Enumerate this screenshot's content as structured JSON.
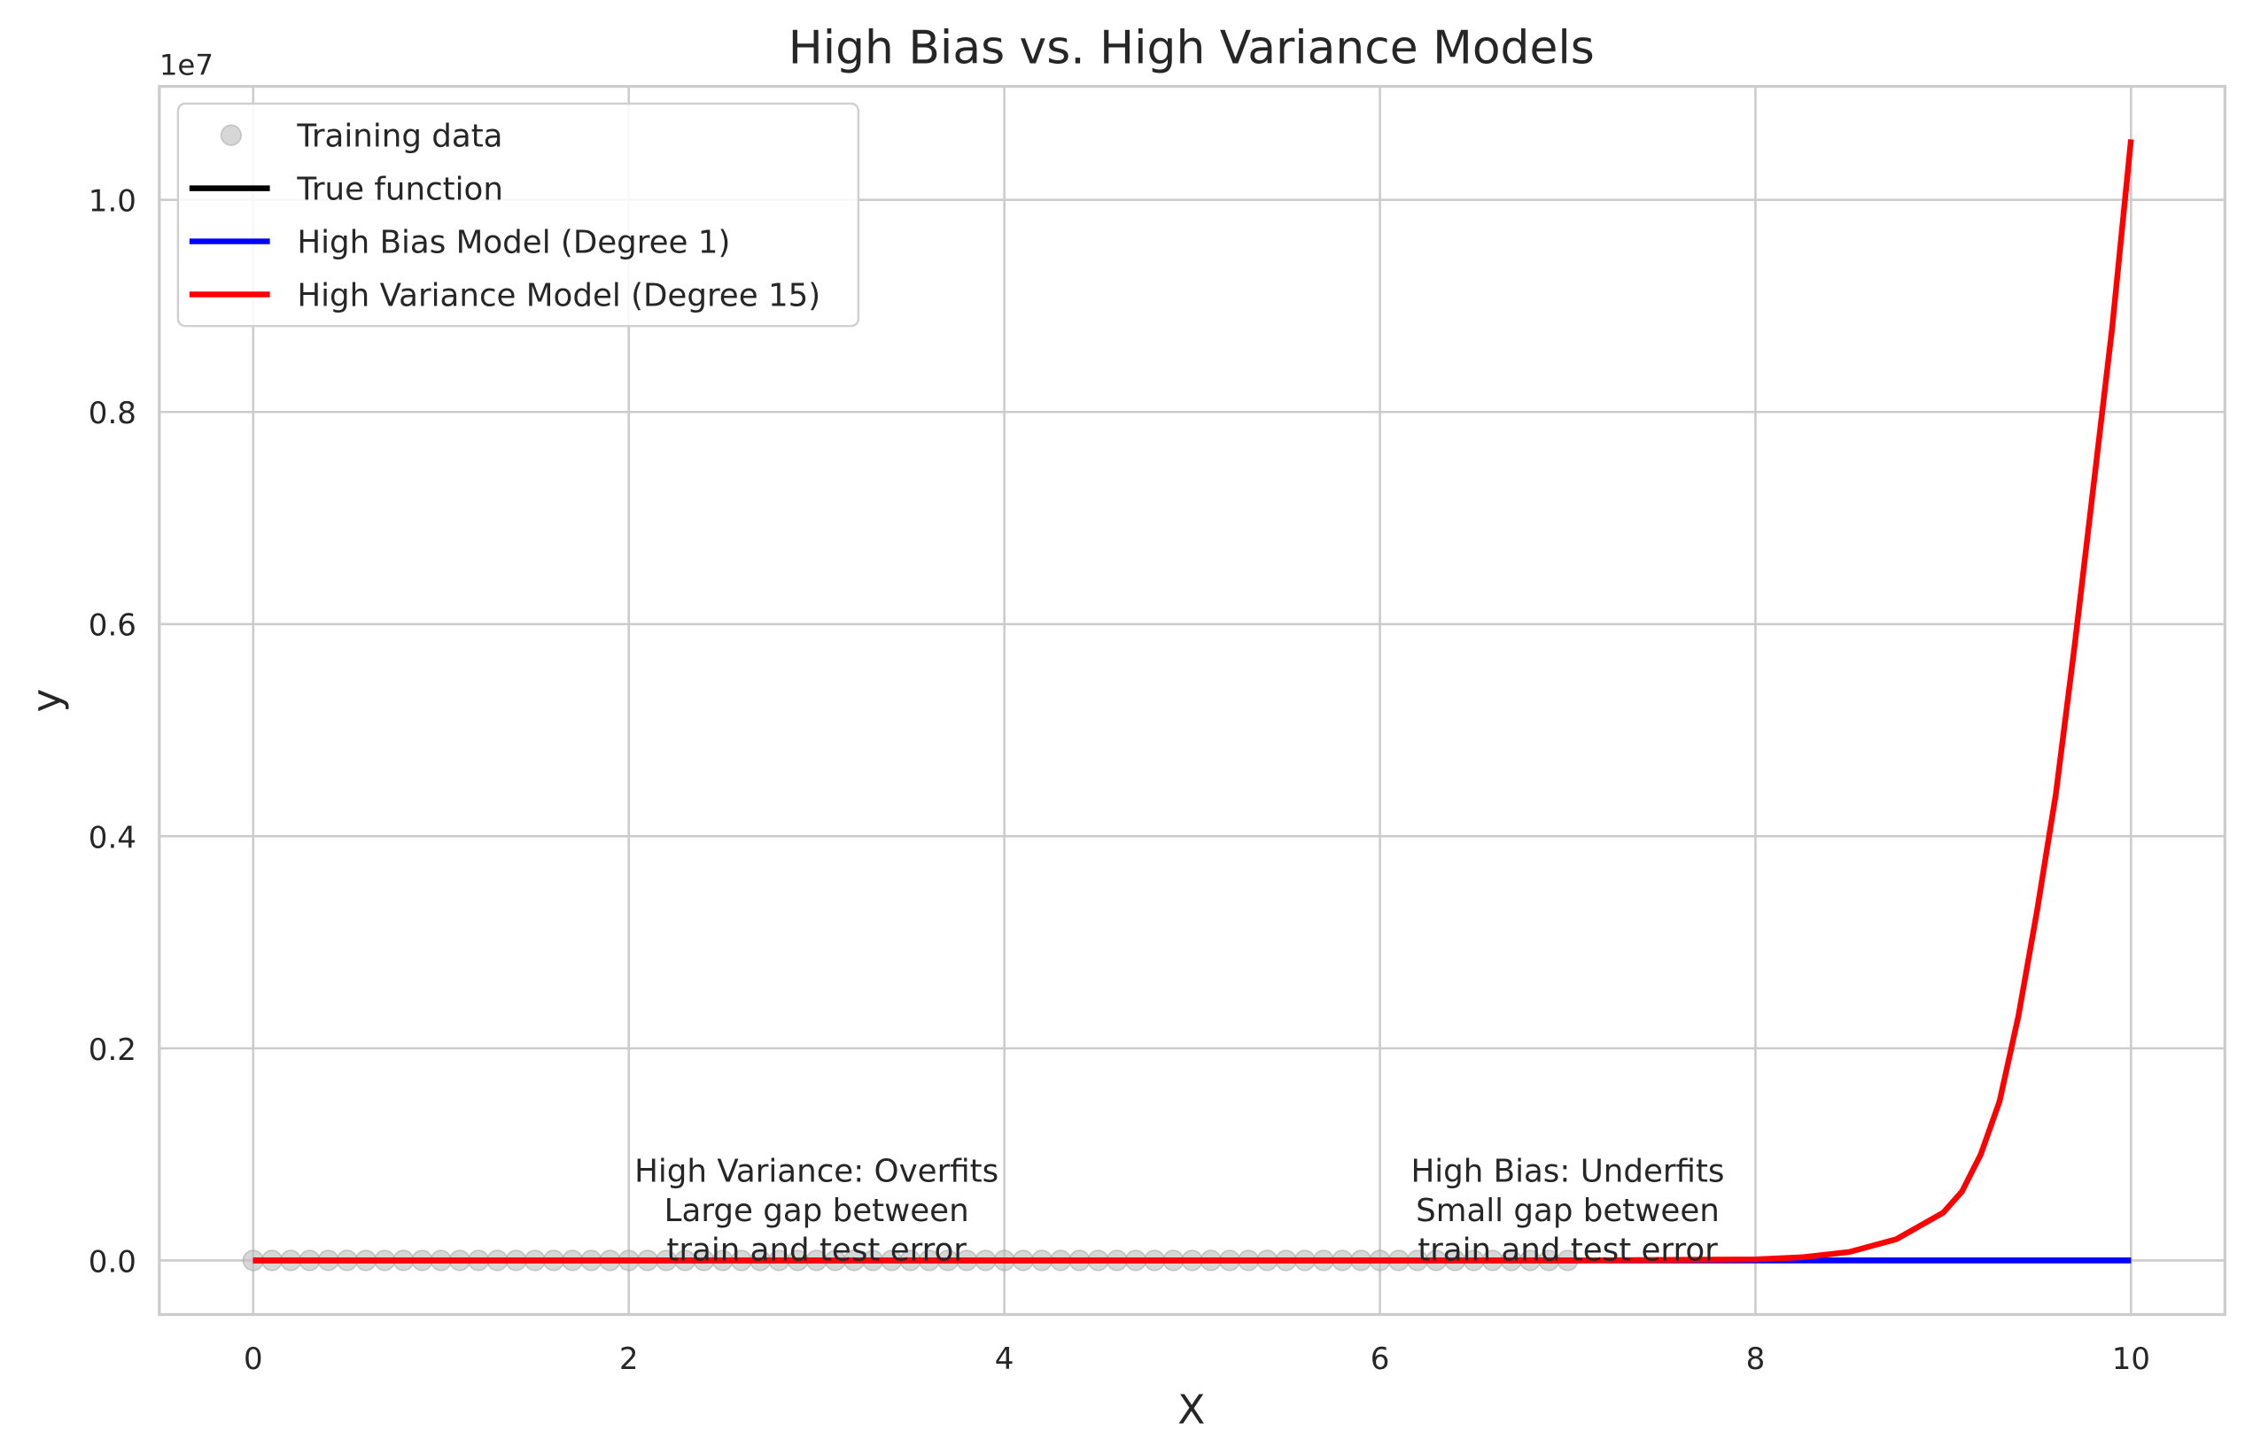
{
  "chart_data": {
    "type": "line",
    "title": "High Bias vs. High Variance Models",
    "x_label": "X",
    "y_label": "y",
    "y_offset_label": "1e7",
    "xlim": [
      -0.5,
      10.5
    ],
    "ylim": [
      -0.051,
      1.107
    ],
    "xticks": [
      0,
      2,
      4,
      6,
      8,
      10
    ],
    "yticks": [
      {
        "value": 0,
        "label": "0.0"
      },
      0.2,
      0.4,
      0.6,
      0.8,
      {
        "value": 1,
        "label": "1.0"
      }
    ],
    "grid": true,
    "legend": "upper left",
    "series": [
      {
        "name": "Training data",
        "type": "scatter",
        "color": "#bdbdbd",
        "x": [
          0,
          0.1,
          0.2,
          0.3,
          0.4,
          0.5,
          0.6,
          0.7,
          0.8,
          0.9,
          1,
          1.1,
          1.2,
          1.3,
          1.4,
          1.5,
          1.6,
          1.7,
          1.8,
          1.9,
          2,
          2.1,
          2.2,
          2.3,
          2.4,
          2.5,
          2.6,
          2.7,
          2.8,
          2.9,
          3,
          3.1,
          3.2,
          3.3,
          3.4,
          3.5,
          3.6,
          3.7,
          3.8,
          3.9,
          4,
          4.1,
          4.2,
          4.3,
          4.4,
          4.5,
          4.6,
          4.7,
          4.8,
          4.9,
          5,
          5.1,
          5.2,
          5.3,
          5.4,
          5.5,
          5.6,
          5.7,
          5.8,
          5.9,
          6,
          6.1,
          6.2,
          6.3,
          6.4,
          6.5,
          6.6,
          6.7,
          6.8,
          6.9,
          7
        ],
        "values": [
          0,
          0,
          0,
          0,
          0,
          0,
          0,
          0,
          0,
          0,
          0,
          0,
          0,
          0,
          0,
          0,
          0,
          0,
          0,
          0,
          0,
          0,
          0,
          0,
          0,
          0,
          0,
          0,
          0,
          0,
          0,
          0,
          0,
          0,
          0,
          0,
          0,
          0,
          0,
          0,
          0,
          0,
          0,
          0,
          0,
          0,
          0,
          0,
          0,
          0,
          0,
          0,
          0,
          0,
          0,
          0,
          0,
          0,
          0,
          0,
          0,
          0,
          0,
          0,
          0,
          0,
          0,
          0,
          0,
          0,
          0
        ]
      },
      {
        "name": "True function",
        "type": "line",
        "color": "#000000",
        "x": [
          0,
          1,
          2,
          3,
          4,
          5,
          6,
          7,
          8,
          9,
          10
        ],
        "values": [
          0,
          0,
          0,
          0,
          0,
          0,
          0,
          0,
          0,
          0,
          0
        ]
      },
      {
        "name": "High Bias Model (Degree 1)",
        "type": "line",
        "color": "#0000ff",
        "x": [
          0,
          10
        ],
        "values": [
          0,
          0
        ]
      },
      {
        "name": "High Variance Model (Degree 15)",
        "type": "line",
        "color": "#ff0000",
        "x": [
          0,
          1,
          2,
          3,
          4,
          5,
          6,
          7,
          8,
          8.25,
          8.5,
          8.75,
          9,
          9.1,
          9.2,
          9.3,
          9.4,
          9.5,
          9.6,
          9.7,
          9.8,
          9.9,
          10
        ],
        "values": [
          0,
          0,
          0,
          0,
          0,
          0,
          0,
          0,
          0.001,
          0.003,
          0.008,
          0.02,
          0.045,
          0.065,
          0.1,
          0.15,
          0.23,
          0.33,
          0.44,
          0.58,
          0.73,
          0.88,
          1.057
        ]
      }
    ],
    "annotations": [
      {
        "x": 3,
        "y": 0,
        "lines": [
          "High Variance: Overfits",
          "Large gap between",
          "train and test error"
        ]
      },
      {
        "x": 7,
        "y": 0,
        "lines": [
          "High Bias: Underfits",
          "Small gap between",
          "train and test error"
        ]
      }
    ]
  }
}
